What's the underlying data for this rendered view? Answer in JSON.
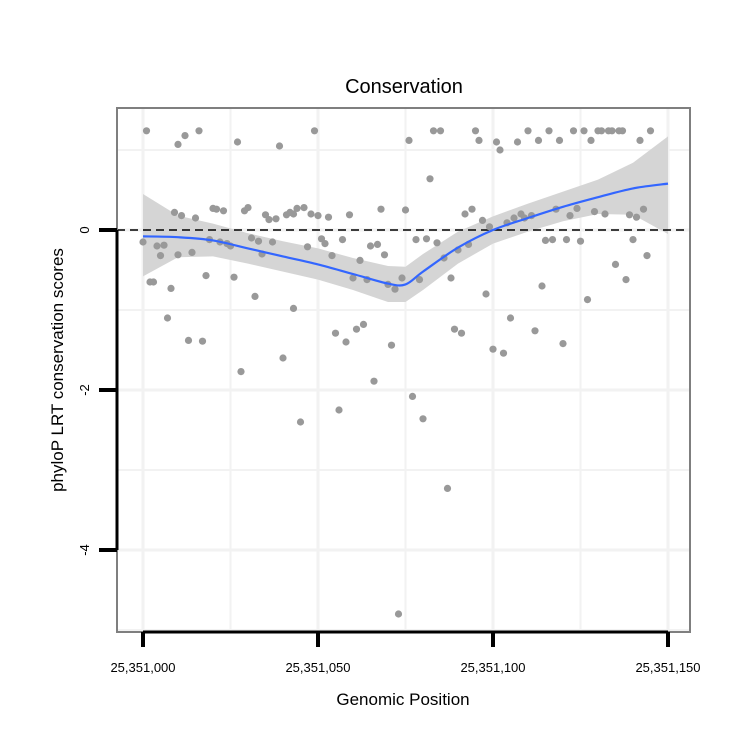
{
  "chart_data": {
    "type": "scatter",
    "title": "Conservation",
    "xlabel": "Genomic Position",
    "ylabel": "phyloP LRT conservation scores",
    "xlim": [
      25350996,
      25351155
    ],
    "ylim": [
      -5.0,
      1.55
    ],
    "x_ticks": [
      25351000,
      25351050,
      25351100,
      25351150
    ],
    "x_tick_labels": [
      "25,351,000",
      "25,351,050",
      "25,351,100",
      "25,351,150"
    ],
    "y_ticks": [
      -4,
      -2,
      0
    ],
    "y_tick_labels": [
      "-4",
      "-2",
      "0"
    ],
    "grid": true,
    "reference_line": {
      "y": 0,
      "style": "dashed"
    },
    "colors": {
      "points": "#999999",
      "smooth_line": "#3366ff",
      "ribbon": "#d3d3d3",
      "panel_border": "#7f7f7f",
      "grid": "#f2f2f2"
    },
    "points": [
      [
        25351000,
        -0.15
      ],
      [
        25351001,
        1.24
      ],
      [
        25351002,
        -0.65
      ],
      [
        25351003,
        -0.65
      ],
      [
        25351004,
        -0.2
      ],
      [
        25351005,
        -0.32
      ],
      [
        25351006,
        -0.19
      ],
      [
        25351007,
        -1.1
      ],
      [
        25351008,
        -0.73
      ],
      [
        25351009,
        0.22
      ],
      [
        25351010,
        -0.31
      ],
      [
        25351010,
        1.07
      ],
      [
        25351011,
        0.18
      ],
      [
        25351012,
        1.18
      ],
      [
        25351013,
        -1.38
      ],
      [
        25351014,
        -0.28
      ],
      [
        25351015,
        0.15
      ],
      [
        25351016,
        1.24
      ],
      [
        25351017,
        -1.39
      ],
      [
        25351018,
        -0.57
      ],
      [
        25351019,
        -0.12
      ],
      [
        25351020,
        0.27
      ],
      [
        25351021,
        0.26
      ],
      [
        25351022,
        -0.15
      ],
      [
        25351023,
        0.24
      ],
      [
        25351024,
        -0.17
      ],
      [
        25351025,
        -0.2
      ],
      [
        25351026,
        -0.59
      ],
      [
        25351027,
        1.1
      ],
      [
        25351028,
        -1.77
      ],
      [
        25351029,
        0.24
      ],
      [
        25351030,
        0.28
      ],
      [
        25351031,
        -0.1
      ],
      [
        25351032,
        -0.83
      ],
      [
        25351033,
        -0.14
      ],
      [
        25351034,
        -0.3
      ],
      [
        25351035,
        0.19
      ],
      [
        25351036,
        0.13
      ],
      [
        25351037,
        -0.15
      ],
      [
        25351038,
        0.14
      ],
      [
        25351039,
        1.05
      ],
      [
        25351040,
        -1.6
      ],
      [
        25351041,
        0.19
      ],
      [
        25351042,
        0.22
      ],
      [
        25351043,
        -0.98
      ],
      [
        25351043,
        0.2
      ],
      [
        25351044,
        0.27
      ],
      [
        25351045,
        -2.4
      ],
      [
        25351046,
        0.28
      ],
      [
        25351047,
        -0.21
      ],
      [
        25351048,
        0.2
      ],
      [
        25351049,
        1.24
      ],
      [
        25351050,
        0.18
      ],
      [
        25351051,
        -0.11
      ],
      [
        25351052,
        -0.17
      ],
      [
        25351053,
        0.16
      ],
      [
        25351054,
        -0.32
      ],
      [
        25351055,
        -1.29
      ],
      [
        25351056,
        -2.25
      ],
      [
        25351057,
        -0.12
      ],
      [
        25351058,
        -1.4
      ],
      [
        25351059,
        0.19
      ],
      [
        25351060,
        -0.6
      ],
      [
        25351061,
        -1.24
      ],
      [
        25351062,
        -0.38
      ],
      [
        25351063,
        -1.18
      ],
      [
        25351064,
        -0.62
      ],
      [
        25351065,
        -0.2
      ],
      [
        25351066,
        -1.89
      ],
      [
        25351067,
        -0.18
      ],
      [
        25351068,
        0.26
      ],
      [
        25351069,
        -0.31
      ],
      [
        25351070,
        -0.68
      ],
      [
        25351071,
        -1.44
      ],
      [
        25351072,
        -0.74
      ],
      [
        25351073,
        -4.8
      ],
      [
        25351074,
        -0.6
      ],
      [
        25351075,
        0.25
      ],
      [
        25351076,
        1.12
      ],
      [
        25351077,
        -2.08
      ],
      [
        25351078,
        -0.12
      ],
      [
        25351079,
        -0.62
      ],
      [
        25351080,
        -2.36
      ],
      [
        25351081,
        -0.11
      ],
      [
        25351082,
        0.64
      ],
      [
        25351083,
        1.24
      ],
      [
        25351084,
        -0.16
      ],
      [
        25351085,
        1.24
      ],
      [
        25351086,
        -0.35
      ],
      [
        25351087,
        -3.23
      ],
      [
        25351088,
        -0.6
      ],
      [
        25351089,
        -1.24
      ],
      [
        25351090,
        -0.25
      ],
      [
        25351091,
        -1.29
      ],
      [
        25351092,
        0.2
      ],
      [
        25351093,
        -0.18
      ],
      [
        25351094,
        0.26
      ],
      [
        25351095,
        1.24
      ],
      [
        25351096,
        1.12
      ],
      [
        25351097,
        0.12
      ],
      [
        25351098,
        -0.8
      ],
      [
        25351099,
        0.04
      ],
      [
        25351100,
        -1.49
      ],
      [
        25351101,
        1.1
      ],
      [
        25351102,
        1.0
      ],
      [
        25351103,
        -1.54
      ],
      [
        25351104,
        0.09
      ],
      [
        25351105,
        -1.1
      ],
      [
        25351106,
        0.15
      ],
      [
        25351107,
        1.1
      ],
      [
        25351108,
        0.2
      ],
      [
        25351109,
        0.15
      ],
      [
        25351110,
        1.24
      ],
      [
        25351111,
        0.18
      ],
      [
        25351112,
        -1.26
      ],
      [
        25351113,
        1.12
      ],
      [
        25351114,
        -0.7
      ],
      [
        25351115,
        -0.13
      ],
      [
        25351116,
        1.24
      ],
      [
        25351117,
        -0.12
      ],
      [
        25351118,
        0.26
      ],
      [
        25351119,
        1.12
      ],
      [
        25351120,
        -1.42
      ],
      [
        25351121,
        -0.12
      ],
      [
        25351122,
        0.18
      ],
      [
        25351123,
        1.24
      ],
      [
        25351124,
        0.27
      ],
      [
        25351125,
        -0.14
      ],
      [
        25351126,
        1.24
      ],
      [
        25351127,
        -0.87
      ],
      [
        25351128,
        1.12
      ],
      [
        25351129,
        0.23
      ],
      [
        25351130,
        1.24
      ],
      [
        25351131,
        1.24
      ],
      [
        25351132,
        0.2
      ],
      [
        25351133,
        1.24
      ],
      [
        25351134,
        1.24
      ],
      [
        25351135,
        -0.43
      ],
      [
        25351136,
        1.24
      ],
      [
        25351137,
        1.24
      ],
      [
        25351138,
        -0.62
      ],
      [
        25351139,
        0.19
      ],
      [
        25351140,
        -0.12
      ],
      [
        25351141,
        0.16
      ],
      [
        25351142,
        1.12
      ],
      [
        25351143,
        0.26
      ],
      [
        25351144,
        -0.32
      ],
      [
        25351145,
        1.24
      ]
    ],
    "smooth": {
      "x": [
        25351000,
        25351010,
        25351020,
        25351030,
        25351040,
        25351050,
        25351060,
        25351070,
        25351075,
        25351080,
        25351090,
        25351100,
        25351110,
        25351120,
        25351130,
        25351140,
        25351150
      ],
      "y": [
        -0.08,
        -0.09,
        -0.13,
        -0.23,
        -0.33,
        -0.43,
        -0.55,
        -0.67,
        -0.68,
        -0.52,
        -0.22,
        0.0,
        0.15,
        0.29,
        0.41,
        0.52,
        0.58
      ],
      "lower": [
        -0.58,
        -0.34,
        -0.33,
        -0.42,
        -0.52,
        -0.62,
        -0.75,
        -0.9,
        -0.9,
        -0.75,
        -0.42,
        -0.17,
        -0.02,
        0.11,
        0.2,
        0.19,
        -0.05
      ],
      "upper": [
        0.45,
        0.18,
        0.08,
        -0.04,
        -0.14,
        -0.23,
        -0.35,
        -0.45,
        -0.46,
        -0.3,
        -0.02,
        0.17,
        0.33,
        0.48,
        0.63,
        0.84,
        1.17
      ]
    }
  }
}
